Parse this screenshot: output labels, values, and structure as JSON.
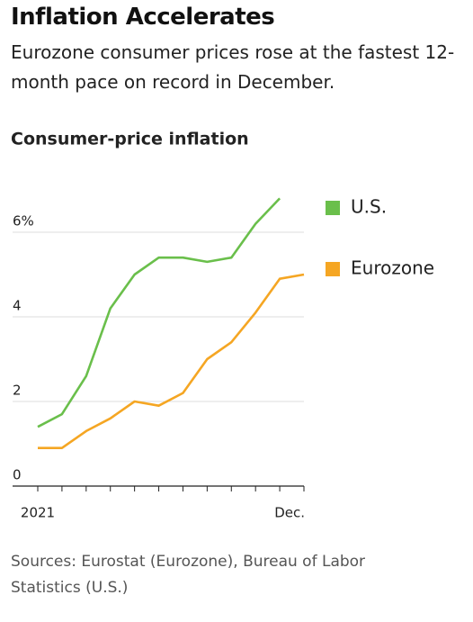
{
  "title": "Inflation Accelerates",
  "subtitle": "Eurozone consumer prices rose at the fastest 12-month pace on record in December.",
  "source": "Sources: Eurostat (Eurozone), Bureau of Labor Statistics (U.S.)",
  "chart_data": {
    "type": "line",
    "title": "Consumer-price inflation",
    "categories": [
      "2021",
      null,
      null,
      null,
      null,
      null,
      null,
      null,
      null,
      null,
      null,
      "Dec."
    ],
    "series": [
      {
        "name": "U.S.",
        "color": "#6abf4b",
        "values": [
          1.4,
          1.7,
          2.6,
          4.2,
          5.0,
          5.4,
          5.4,
          5.3,
          5.4,
          6.2,
          6.8,
          null
        ]
      },
      {
        "name": "Eurozone",
        "color": "#f5a623",
        "values": [
          0.9,
          0.9,
          1.3,
          1.6,
          2.0,
          1.9,
          2.2,
          3.0,
          3.4,
          4.1,
          4.9,
          5.0
        ]
      }
    ],
    "ylim": [
      0,
      7
    ],
    "yticks": [
      0,
      2,
      4,
      {
        "value": 6,
        "label": "6%"
      }
    ],
    "grid": true,
    "legend": "right"
  }
}
